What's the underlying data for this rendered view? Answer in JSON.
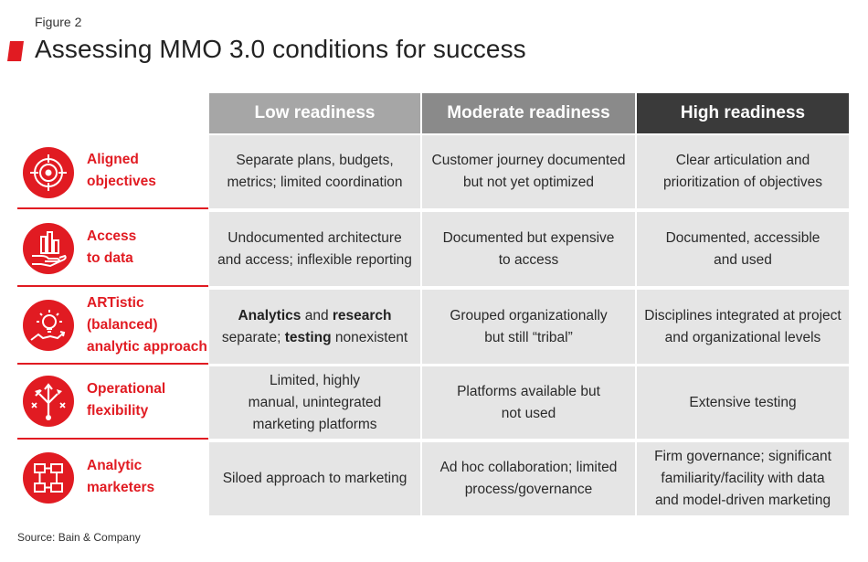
{
  "figure_label": "Figure 2",
  "title": "Assessing MMO 3.0 conditions for success",
  "source": "Source: Bain & Company",
  "colors": {
    "accent": "#e11b22",
    "low_header": "#a6a6a6",
    "moderate_header": "#8a8a8a",
    "high_header": "#3a3a3a",
    "cell_bg": "#e5e5e5"
  },
  "columns": {
    "low": "Low readiness",
    "moderate": "Moderate readiness",
    "high": "High readiness"
  },
  "rows": [
    {
      "icon": "target-icon",
      "label_line1": "Aligned",
      "label_line2": "objectives",
      "label_line3": "",
      "low_line1": "Separate plans, budgets,",
      "low_line2": "metrics; limited coordination",
      "low_line3": "",
      "moderate_line1": "Customer journey documented",
      "moderate_line2": "but not yet optimized",
      "moderate_line3": "",
      "high_line1": "Clear articulation and",
      "high_line2": "prioritization of objectives",
      "high_line3": ""
    },
    {
      "icon": "hand-chart-icon",
      "label_line1": "Access",
      "label_line2": "to data",
      "label_line3": "",
      "low_line1": "Undocumented architecture",
      "low_line2": "and access; inflexible reporting",
      "low_line3": "",
      "moderate_line1": "Documented but expensive",
      "moderate_line2": "to access",
      "moderate_line3": "",
      "high_line1": "Documented, accessible",
      "high_line2": "and used",
      "high_line3": ""
    },
    {
      "icon": "lightbulb-growth-icon",
      "label_line1": "ARTistic",
      "label_line2": "(balanced)",
      "label_line3": "analytic approach",
      "low_bold1": "Analytics",
      "low_and": " and ",
      "low_bold2": "research",
      "low_sep": "separate; ",
      "low_bold3": "testing",
      "low_tail": " nonexistent",
      "moderate_line1": "Grouped organizationally",
      "moderate_line2": "but still “tribal”",
      "moderate_line3": "",
      "high_line1": "Disciplines integrated at project",
      "high_line2": "and organizational levels",
      "high_line3": ""
    },
    {
      "icon": "branching-arrows-icon",
      "label_line1": "Operational",
      "label_line2": "flexibility",
      "label_line3": "",
      "low_line1": "Limited, highly",
      "low_line2": "manual, unintegrated",
      "low_line3": "marketing platforms",
      "moderate_line1": "Platforms available but",
      "moderate_line2": "not used",
      "moderate_line3": "",
      "high_line1": "Extensive testing",
      "high_line2": "",
      "high_line3": ""
    },
    {
      "icon": "flowchart-icon",
      "label_line1": "Analytic",
      "label_line2": "marketers",
      "label_line3": "",
      "low_line1": "Siloed approach to marketing",
      "low_line2": "",
      "low_line3": "",
      "moderate_line1": "Ad hoc collaboration; limited",
      "moderate_line2": "process/governance",
      "moderate_line3": "",
      "high_line1": "Firm governance; significant",
      "high_line2": "familiarity/facility with data",
      "high_line3": "and model-driven marketing"
    }
  ]
}
